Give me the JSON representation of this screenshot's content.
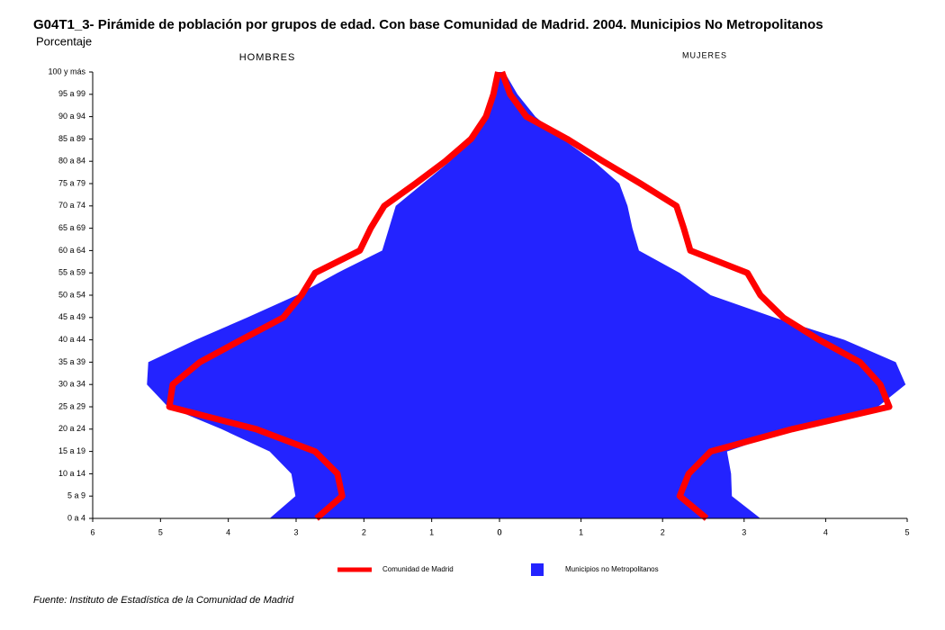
{
  "chart_data": {
    "type": "pyramid",
    "title": "G04T1_3- Pirámide de población por grupos de edad.  Con base Comunidad de Madrid.  2004.  Municipios No Metropolitanos",
    "subtitle": "Porcentaje",
    "left_label": "HOMBRES",
    "right_label": "MUJERES",
    "source": "Fuente: Instituto de Estadística de la Comunidad de Madrid",
    "categories": [
      "0 a 4",
      "5 a 9",
      "10 a 14",
      "15 a 19",
      "20 a 24",
      "25 a 29",
      "30 a 34",
      "35 a 39",
      "40 a 44",
      "45 a 49",
      "50 a 54",
      "55 a 59",
      "60 a 64",
      "65 a 69",
      "70 a 74",
      "75 a 79",
      "80 a 84",
      "85 a 89",
      "90 a 94",
      "95 a 99",
      "100 y más"
    ],
    "left_xlim": [
      0,
      6
    ],
    "left_xticks": [
      0,
      1,
      2,
      3,
      4,
      5,
      6
    ],
    "right_xlim": [
      0,
      5
    ],
    "right_xticks": [
      0,
      1,
      2,
      3,
      4,
      5
    ],
    "series": [
      {
        "name": "Municipios no Metropolitanos",
        "color": "#2323ff",
        "style": "area",
        "hombres": [
          3.39,
          3.01,
          3.07,
          3.39,
          4.1,
          4.89,
          5.2,
          5.18,
          4.48,
          3.72,
          2.99,
          2.39,
          1.73,
          1.63,
          1.53,
          1.13,
          0.73,
          0.44,
          0.23,
          0.09,
          0.03
        ],
        "mujeres": [
          3.2,
          2.85,
          2.84,
          2.79,
          3.59,
          4.64,
          4.98,
          4.86,
          4.23,
          3.37,
          2.59,
          2.21,
          1.71,
          1.63,
          1.57,
          1.47,
          1.16,
          0.77,
          0.44,
          0.22,
          0.06
        ]
      },
      {
        "name": "Comunidad de Madrid",
        "color": "#ff0000",
        "style": "line",
        "hombres": [
          2.7,
          2.32,
          2.39,
          2.72,
          3.59,
          4.87,
          4.82,
          4.42,
          3.81,
          3.19,
          2.92,
          2.72,
          2.06,
          1.9,
          1.7,
          1.24,
          0.8,
          0.42,
          0.2,
          0.09,
          0.02
        ],
        "mujeres": [
          2.54,
          2.21,
          2.32,
          2.59,
          3.59,
          4.78,
          4.67,
          4.42,
          3.92,
          3.48,
          3.2,
          3.04,
          2.34,
          2.26,
          2.17,
          1.73,
          1.27,
          0.83,
          0.33,
          0.13,
          0.03
        ]
      }
    ]
  }
}
